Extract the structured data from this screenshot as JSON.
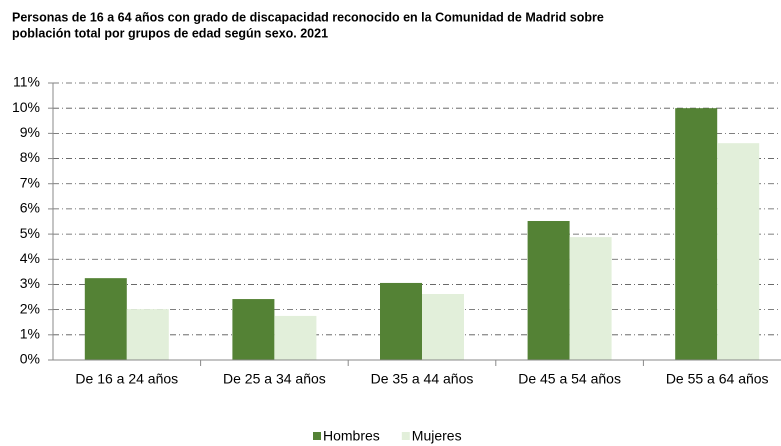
{
  "chart_data": {
    "type": "bar",
    "title": [
      "Personas de 16 a 64 años con grado de discapacidad reconocido en la Comunidad de Madrid sobre",
      "población total por grupos de edad según sexo. 2021"
    ],
    "categories": [
      "De 16 a 24 años",
      "De 25 a 34 años",
      "De 35 a 44 años",
      "De 45 a 54 años",
      "De 55 a 64 años"
    ],
    "series": [
      {
        "name": "Hombres",
        "color": "#548235",
        "values": [
          3.25,
          2.42,
          3.06,
          5.52,
          10.0
        ]
      },
      {
        "name": "Mujeres",
        "color": "#e2efda",
        "values": [
          2.02,
          1.75,
          2.62,
          4.88,
          8.61
        ]
      }
    ],
    "ylim": [
      0,
      11
    ],
    "yticks": [
      {
        "value": 0,
        "label": "0%"
      },
      {
        "value": 1,
        "label": "1%"
      },
      {
        "value": 2,
        "label": "2%"
      },
      {
        "value": 3,
        "label": "3%"
      },
      {
        "value": 4,
        "label": "4%"
      },
      {
        "value": 5,
        "label": "5%"
      },
      {
        "value": 6,
        "label": "6%"
      },
      {
        "value": 7,
        "label": "7%"
      },
      {
        "value": 8,
        "label": "8%"
      },
      {
        "value": 9,
        "label": "9%"
      },
      {
        "value": 10,
        "label": "10%"
      },
      {
        "value": 11,
        "label": "11%"
      }
    ],
    "grid": true,
    "legend": "bottom"
  }
}
